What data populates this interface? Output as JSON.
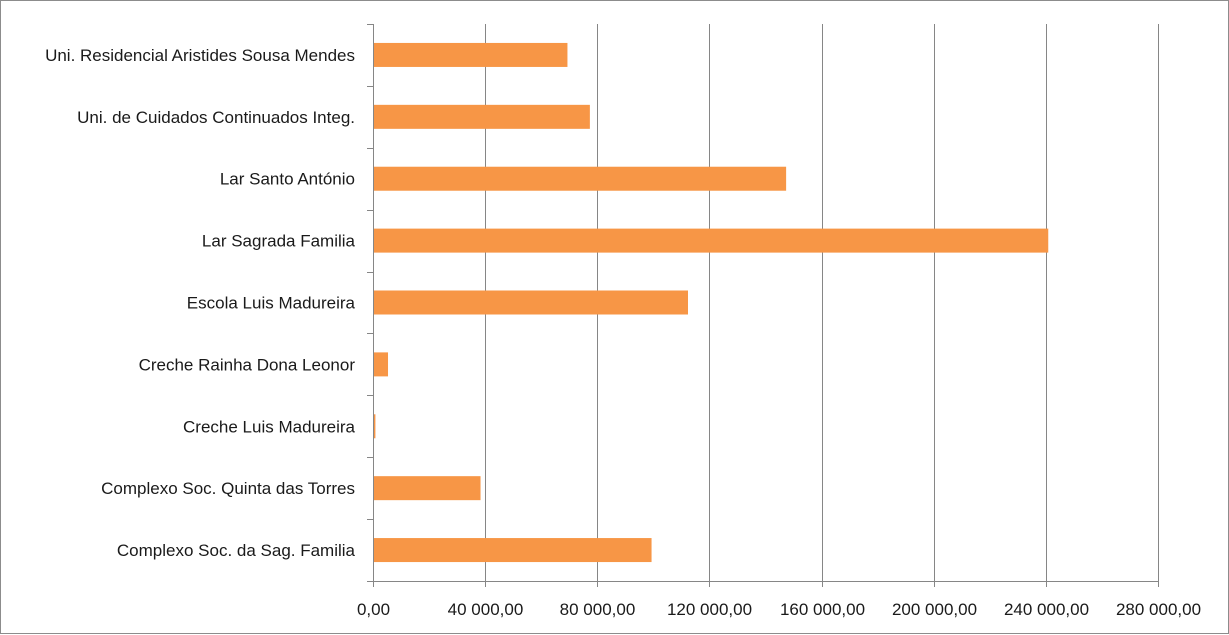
{
  "chart_data": {
    "type": "bar",
    "orientation": "horizontal",
    "categories": [
      "Uni. Residencial Aristides Sousa Mendes",
      "Uni. de Cuidados Continuados Integ.",
      "Lar Santo António",
      "Lar Sagrada Familia",
      "Escola Luis Madureira",
      "Creche Rainha Dona Leonor",
      "Creche Luis Madureira",
      "Complexo Soc. Quinta das Torres",
      "Complexo Soc. da Sag. Familia"
    ],
    "values": [
      69000,
      77000,
      147000,
      240500,
      112000,
      5000,
      500,
      38000,
      99000
    ],
    "xlim": [
      0,
      280000
    ],
    "xticks": [
      0,
      40000,
      80000,
      120000,
      160000,
      200000,
      240000,
      280000
    ],
    "xtick_labels": [
      "0,00",
      "40 000,00",
      "80 000,00",
      "120 000,00",
      "160 000,00",
      "200 000,00",
      "240 000,00",
      "280 000,00"
    ],
    "grid": "vertical",
    "legend": "none",
    "title": "",
    "xlabel": "",
    "ylabel": "",
    "bar_color": "#f79646",
    "grid_color": "#868686",
    "axis_color": "#868686"
  }
}
